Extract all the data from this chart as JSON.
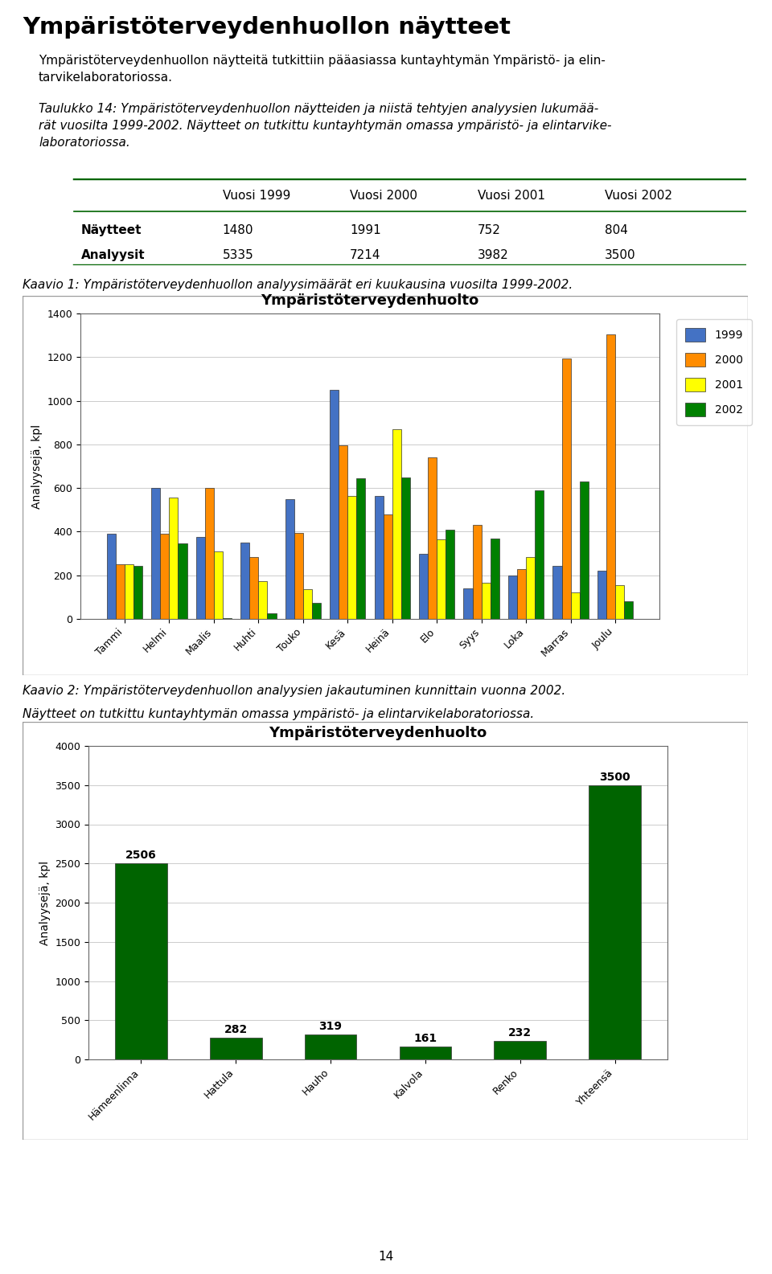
{
  "page_title": "Ympäristöterveydenhuollon näytteet",
  "intro_text": "Ympäristöterveydenhuollon näytteitä tutkittiin pääasiassa kuntayhtymän Ympäristö- ja elintarvikelaboratoriossa.",
  "caption_text_line1": "Taulukko 14: Ympäristöterveydenhuollon näytteiden ja niistä tehtyjen analyysien lukumää-",
  "caption_text_line2": "rät vuosilta 1999-2002. Näytteet on tutkittu kuntayhtymän omassa ympäristö- ja elintarvike-",
  "caption_text_line3": "laboratoriossa.",
  "table_headers": [
    "",
    "Vuosi 1999",
    "Vuosi 2000",
    "Vuosi 2001",
    "Vuosi 2002"
  ],
  "table_row1": [
    "Näytteet",
    "1480",
    "1991",
    "752",
    "804"
  ],
  "table_row2": [
    "Analyysit",
    "5335",
    "7214",
    "3982",
    "3500"
  ],
  "kaavio1_caption": "Kaavio 1: Ympäristöterveydenhuollon analyysimäärät eri kuukausina vuosilta 1999-2002.",
  "kaavio1_title": "Ympäristöterveydenhuolto",
  "chart1_ylabel": "Analyysejä, kpl",
  "chart1_months": [
    "Tammi",
    "Helmi",
    "Maalis",
    "Huhti",
    "Touko",
    "Kesä",
    "Heinä",
    "Elo",
    "Syys",
    "Loka",
    "Marras",
    "Joulu"
  ],
  "chart1_1999": [
    390,
    600,
    375,
    350,
    550,
    1050,
    565,
    300,
    140,
    200,
    245,
    220
  ],
  "chart1_2000": [
    250,
    390,
    600,
    285,
    395,
    795,
    480,
    740,
    430,
    230,
    1195,
    1305
  ],
  "chart1_2001": [
    250,
    555,
    310,
    175,
    135,
    565,
    870,
    365,
    165,
    285,
    120,
    155
  ],
  "chart1_2002": [
    245,
    345,
    5,
    25,
    75,
    645,
    650,
    410,
    370,
    590,
    630,
    80
  ],
  "chart1_colors": [
    "#4472C4",
    "#FF8C00",
    "#FFFF00",
    "#008000"
  ],
  "chart1_legend": [
    "1999",
    "2000",
    "2001",
    "2002"
  ],
  "chart1_ylim": [
    0,
    1400
  ],
  "chart1_yticks": [
    0,
    200,
    400,
    600,
    800,
    1000,
    1200,
    1400
  ],
  "kaavio2_caption1": "Kaavio 2: Ympäristöterveydenhuollon analyysien jakautuminen kunnittain vuonna 2002.",
  "kaavio2_caption2": "Näytteet on tutkittu kuntayhtymän omassa ympäristö- ja elintarvikelaboratoriossa.",
  "kaavio2_title": "Ympäristöterveydenhuolto",
  "chart2_ylabel": "Analyysejä, kpl",
  "chart2_categories": [
    "Hämeenlinna",
    "Hattula",
    "Hauho",
    "Kalvola",
    "Renko",
    "Yhteensä"
  ],
  "chart2_values": [
    2506,
    282,
    319,
    161,
    232,
    3500
  ],
  "chart2_color": "#006400",
  "chart2_ylim": [
    0,
    4000
  ],
  "chart2_yticks": [
    0,
    500,
    1000,
    1500,
    2000,
    2500,
    3000,
    3500,
    4000
  ],
  "page_number": "14",
  "background_color": "#ffffff",
  "table_line_color": "#006400"
}
